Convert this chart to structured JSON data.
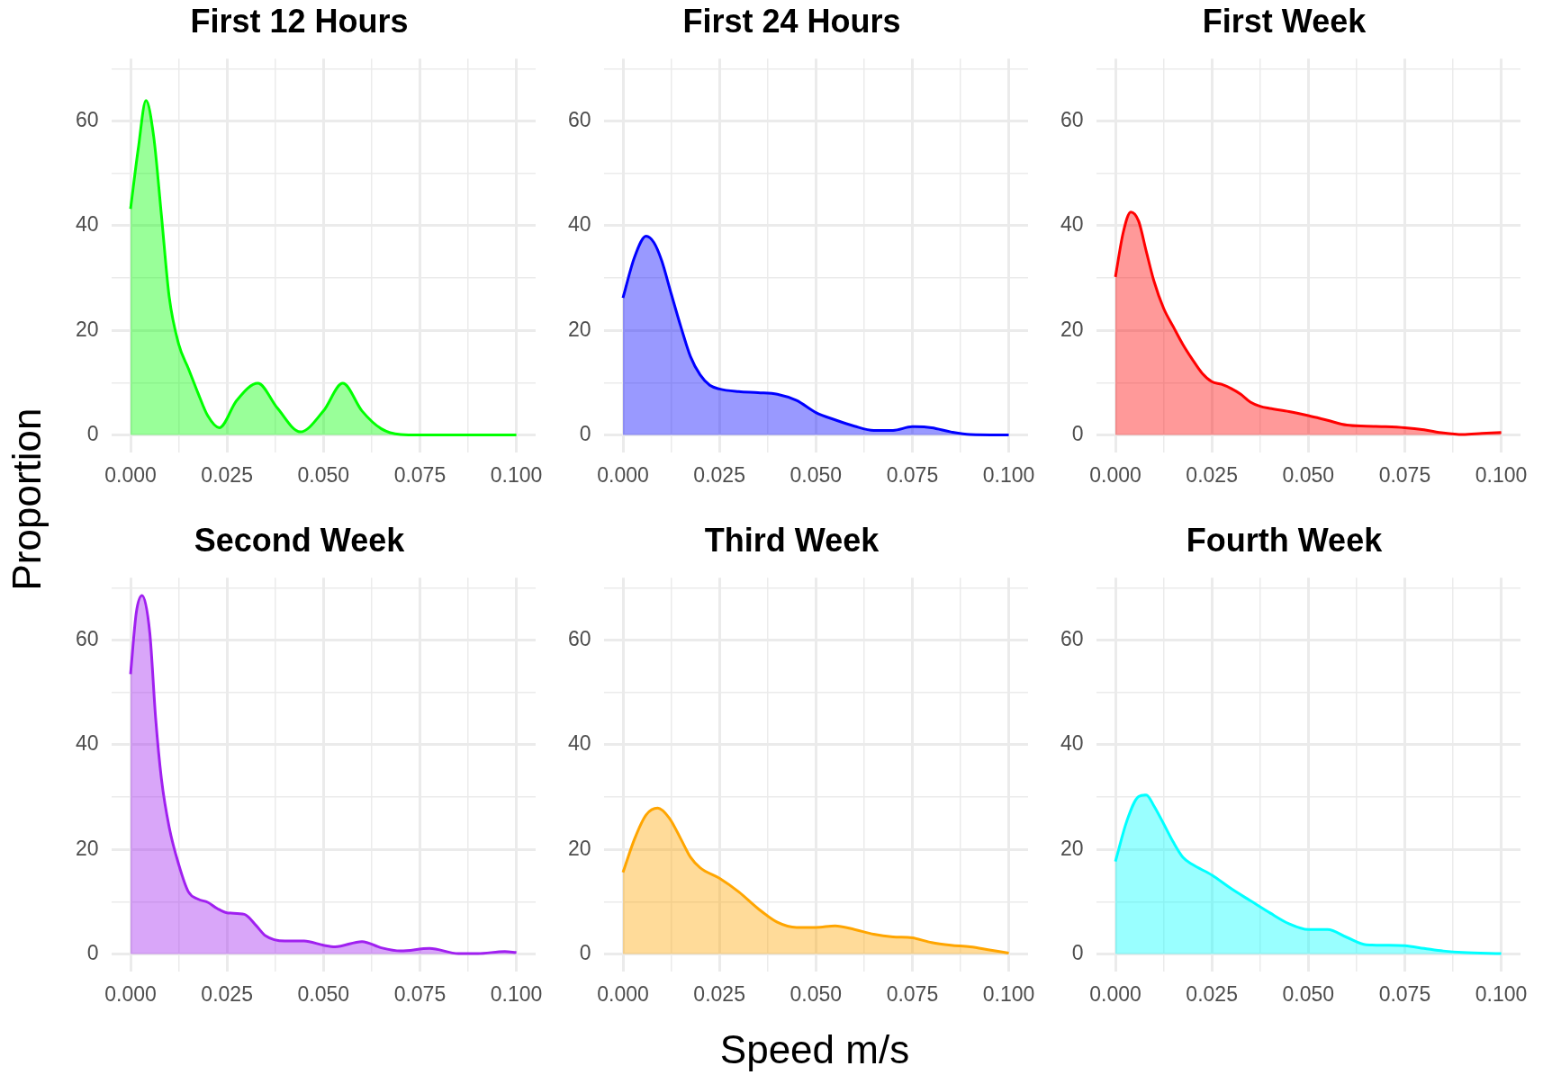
{
  "chart_data": [
    {
      "type": "area",
      "title": "First 12 Hours",
      "ylabel": "Proportion",
      "color": "#00ff00",
      "grid": true,
      "x": [
        0,
        0.002,
        0.004,
        0.006,
        0.008,
        0.01,
        0.0125,
        0.015,
        0.0175,
        0.02,
        0.023,
        0.0275,
        0.033,
        0.038,
        0.044,
        0.05,
        0.055,
        0.06,
        0.065,
        0.07,
        0.075,
        0.08,
        0.085,
        0.09,
        0.095,
        0.1
      ],
      "values": [
        43.2,
        54.7,
        63.9,
        57,
        42,
        26.5,
        17.3,
        12.7,
        8,
        3.7,
        1.4,
        6.6,
        9.9,
        5.2,
        0.6,
        4.6,
        9.9,
        4.6,
        1.2,
        0.1,
        0,
        0,
        0,
        0,
        0,
        0
      ],
      "xlim": [
        -0.005,
        0.105
      ],
      "ylim": [
        -3.4,
        71.9
      ],
      "xticks": [
        {
          "value": 0,
          "label": "0.000"
        },
        {
          "value": 0.0125,
          "label": null
        },
        {
          "value": 0.025,
          "label": "0.025"
        },
        {
          "value": 0.0375,
          "label": null
        },
        {
          "value": 0.05,
          "label": "0.050"
        },
        {
          "value": 0.0625,
          "label": null
        },
        {
          "value": 0.075,
          "label": "0.075"
        },
        {
          "value": 0.0875,
          "label": null
        },
        {
          "value": 0.1,
          "label": "0.100"
        }
      ],
      "yticks": [
        0,
        {
          "value": 10,
          "label": null
        },
        20,
        {
          "value": 30,
          "label": null
        },
        40,
        {
          "value": 50,
          "label": null
        },
        60,
        {
          "value": 70,
          "label": null
        }
      ]
    },
    {
      "type": "area",
      "title": "First 24 Hours",
      "color": "#0000ff",
      "grid": true,
      "x": [
        0,
        0.003,
        0.006,
        0.008,
        0.01,
        0.0125,
        0.015,
        0.0175,
        0.02,
        0.0225,
        0.025,
        0.03,
        0.035,
        0.04,
        0.045,
        0.05,
        0.055,
        0.06,
        0.065,
        0.07,
        0.075,
        0.08,
        0.085,
        0.09,
        0.1
      ],
      "values": [
        26.2,
        34,
        38,
        36.8,
        33.4,
        27,
        20.7,
        15,
        11.5,
        9.5,
        8.8,
        8.3,
        8.1,
        7.8,
        6.6,
        4.3,
        2.9,
        1.7,
        0.9,
        0.9,
        1.6,
        1.4,
        0.6,
        0.1,
        0
      ],
      "xlim": [
        -0.005,
        0.105
      ],
      "ylim": [
        -3.4,
        71.9
      ],
      "xticks": [
        {
          "value": 0,
          "label": "0.000"
        },
        {
          "value": 0.0125,
          "label": null
        },
        {
          "value": 0.025,
          "label": "0.025"
        },
        {
          "value": 0.0375,
          "label": null
        },
        {
          "value": 0.05,
          "label": "0.050"
        },
        {
          "value": 0.0625,
          "label": null
        },
        {
          "value": 0.075,
          "label": "0.075"
        },
        {
          "value": 0.0875,
          "label": null
        },
        {
          "value": 0.1,
          "label": "0.100"
        }
      ],
      "yticks": [
        0,
        {
          "value": 10,
          "label": null
        },
        20,
        {
          "value": 30,
          "label": null
        },
        40,
        {
          "value": 50,
          "label": null
        },
        60,
        {
          "value": 70,
          "label": null
        }
      ]
    },
    {
      "type": "area",
      "title": "First Week",
      "color": "#ff0000",
      "grid": true,
      "x": [
        0,
        0.002,
        0.004,
        0.006,
        0.008,
        0.01,
        0.0125,
        0.015,
        0.0175,
        0.02,
        0.0225,
        0.025,
        0.0275,
        0.03,
        0.0325,
        0.035,
        0.0375,
        0.04,
        0.045,
        0.05,
        0.055,
        0.06,
        0.065,
        0.07,
        0.075,
        0.08,
        0.085,
        0.09,
        0.095,
        0.1
      ],
      "values": [
        30.2,
        38.6,
        42.6,
        40.9,
        35.1,
        29.4,
        24.2,
        20.7,
        17.3,
        14.4,
        11.8,
        10.2,
        9.7,
        8.9,
        7.8,
        6.3,
        5.5,
        5.1,
        4.5,
        3.7,
        2.8,
        1.9,
        1.7,
        1.6,
        1.4,
        1,
        0.4,
        0.1,
        0.3,
        0.5
      ],
      "xlim": [
        -0.005,
        0.105
      ],
      "ylim": [
        -3.4,
        71.9
      ],
      "xticks": [
        {
          "value": 0,
          "label": "0.000"
        },
        {
          "value": 0.0125,
          "label": null
        },
        {
          "value": 0.025,
          "label": "0.025"
        },
        {
          "value": 0.0375,
          "label": null
        },
        {
          "value": 0.05,
          "label": "0.050"
        },
        {
          "value": 0.0625,
          "label": null
        },
        {
          "value": 0.075,
          "label": "0.075"
        },
        {
          "value": 0.0875,
          "label": null
        },
        {
          "value": 0.1,
          "label": "0.100"
        }
      ],
      "yticks": [
        0,
        {
          "value": 10,
          "label": null
        },
        20,
        {
          "value": 30,
          "label": null
        },
        40,
        {
          "value": 50,
          "label": null
        },
        60,
        {
          "value": 70,
          "label": null
        }
      ]
    },
    {
      "type": "area",
      "title": "Second Week",
      "color": "#a020f0",
      "grid": true,
      "x": [
        0,
        0.0015,
        0.003,
        0.005,
        0.0065,
        0.008,
        0.01,
        0.0125,
        0.015,
        0.0175,
        0.02,
        0.0225,
        0.025,
        0.0295,
        0.0325,
        0.035,
        0.04,
        0.045,
        0.05,
        0.053,
        0.06,
        0.065,
        0.07,
        0.0775,
        0.085,
        0.09,
        0.097,
        0.1
      ],
      "values": [
        53.5,
        65.3,
        68.5,
        61.3,
        45.1,
        33.5,
        24.3,
        17.1,
        11.9,
        10.5,
        9.9,
        8.7,
        7.9,
        7.6,
        5.5,
        3.5,
        2.5,
        2.5,
        1.7,
        1.4,
        2.4,
        1.2,
        0.6,
        1.1,
        0.1,
        0.1,
        0.5,
        0.3
      ],
      "xlim": [
        -0.005,
        0.105
      ],
      "ylim": [
        -3.4,
        71.9
      ],
      "xticks": [
        {
          "value": 0,
          "label": "0.000"
        },
        {
          "value": 0.0125,
          "label": null
        },
        {
          "value": 0.025,
          "label": "0.025"
        },
        {
          "value": 0.0375,
          "label": null
        },
        {
          "value": 0.05,
          "label": "0.050"
        },
        {
          "value": 0.0625,
          "label": null
        },
        {
          "value": 0.075,
          "label": "0.075"
        },
        {
          "value": 0.0875,
          "label": null
        },
        {
          "value": 0.1,
          "label": "0.100"
        }
      ],
      "yticks": [
        0,
        {
          "value": 10,
          "label": null
        },
        20,
        {
          "value": 30,
          "label": null
        },
        40,
        {
          "value": 50,
          "label": null
        },
        60,
        {
          "value": 70,
          "label": null
        }
      ]
    },
    {
      "type": "area",
      "title": "Third Week",
      "xlabel": "Speed m/s",
      "color": "#ffa500",
      "grid": true,
      "x": [
        0,
        0.003,
        0.006,
        0.009,
        0.012,
        0.015,
        0.0175,
        0.02,
        0.025,
        0.03,
        0.035,
        0.04,
        0.045,
        0.05,
        0.055,
        0.06,
        0.065,
        0.07,
        0.075,
        0.08,
        0.085,
        0.09,
        0.095,
        0.1
      ],
      "values": [
        15.6,
        22,
        26.6,
        27.9,
        26,
        22,
        18.5,
        16.5,
        14.5,
        11.9,
        8.7,
        6.1,
        5.1,
        5.1,
        5.4,
        4.7,
        3.8,
        3.3,
        3.1,
        2.2,
        1.7,
        1.4,
        0.8,
        0.2
      ],
      "xlim": [
        -0.005,
        0.105
      ],
      "ylim": [
        -3.4,
        71.9
      ],
      "xticks": [
        {
          "value": 0,
          "label": "0.000"
        },
        {
          "value": 0.0125,
          "label": null
        },
        {
          "value": 0.025,
          "label": "0.025"
        },
        {
          "value": 0.0375,
          "label": null
        },
        {
          "value": 0.05,
          "label": "0.050"
        },
        {
          "value": 0.0625,
          "label": null
        },
        {
          "value": 0.075,
          "label": "0.075"
        },
        {
          "value": 0.0875,
          "label": null
        },
        {
          "value": 0.1,
          "label": "0.100"
        }
      ],
      "yticks": [
        0,
        {
          "value": 10,
          "label": null
        },
        20,
        {
          "value": 30,
          "label": null
        },
        40,
        {
          "value": 50,
          "label": null
        },
        60,
        {
          "value": 70,
          "label": null
        }
      ]
    },
    {
      "type": "area",
      "title": "Fourth Week",
      "color": "#00ffff",
      "grid": true,
      "x": [
        0,
        0.003,
        0.006,
        0.008,
        0.01,
        0.0125,
        0.015,
        0.0175,
        0.02,
        0.025,
        0.03,
        0.035,
        0.04,
        0.045,
        0.05,
        0.055,
        0.06,
        0.065,
        0.07,
        0.075,
        0.08,
        0.085,
        0.09,
        0.1
      ],
      "values": [
        17.7,
        25.5,
        30.1,
        30.4,
        28.3,
        24.9,
        21.4,
        18.5,
        17.1,
        15.1,
        12.5,
        10.2,
        7.9,
        5.8,
        4.7,
        4.7,
        3.2,
        1.8,
        1.7,
        1.6,
        1.1,
        0.6,
        0.3,
        0.1
      ],
      "xlim": [
        -0.005,
        0.105
      ],
      "ylim": [
        -3.4,
        71.9
      ],
      "xticks": [
        {
          "value": 0,
          "label": "0.000"
        },
        {
          "value": 0.0125,
          "label": null
        },
        {
          "value": 0.025,
          "label": "0.025"
        },
        {
          "value": 0.0375,
          "label": null
        },
        {
          "value": 0.05,
          "label": "0.050"
        },
        {
          "value": 0.0625,
          "label": null
        },
        {
          "value": 0.075,
          "label": "0.075"
        },
        {
          "value": 0.0875,
          "label": null
        },
        {
          "value": 0.1,
          "label": "0.100"
        }
      ],
      "yticks": [
        0,
        {
          "value": 10,
          "label": null
        },
        20,
        {
          "value": 30,
          "label": null
        },
        40,
        {
          "value": 50,
          "label": null
        },
        60,
        {
          "value": 70,
          "label": null
        }
      ]
    }
  ]
}
